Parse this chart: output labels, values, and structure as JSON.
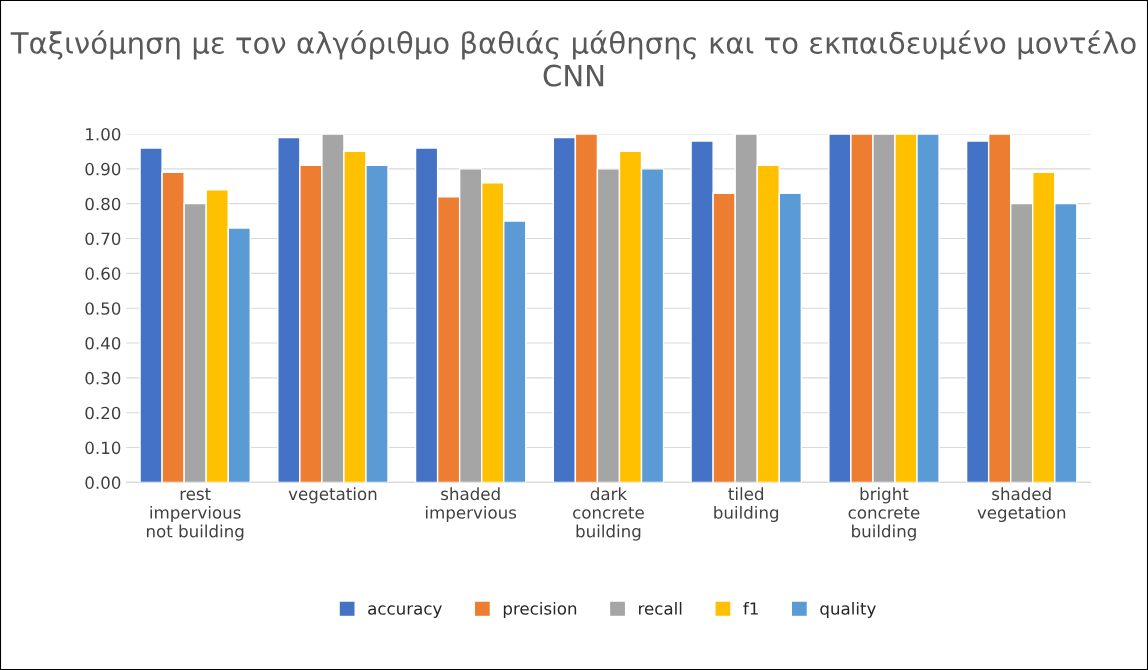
{
  "chart_data": {
    "type": "bar",
    "title": "Ταξινόμηση με τον αλγόριθμο βαθιάς μάθησης και το εκπαιδευμένο μοντέλο CNN",
    "categories": [
      "rest\nimpervious\nnot building",
      "vegetation",
      "shaded\nimpervious",
      "dark\nconcrete\nbuilding",
      "tiled\nbuilding",
      "bright\nconcrete\nbuilding",
      "shaded\nvegetation"
    ],
    "series": [
      {
        "name": "accuracy",
        "color": "#4472c4",
        "values": [
          0.96,
          0.99,
          0.96,
          0.99,
          0.98,
          1.0,
          0.98
        ]
      },
      {
        "name": "precision",
        "color": "#ed7d31",
        "values": [
          0.89,
          0.91,
          0.82,
          1.0,
          0.83,
          1.0,
          1.0
        ]
      },
      {
        "name": "recall",
        "color": "#a5a5a5",
        "values": [
          0.8,
          1.0,
          0.9,
          0.9,
          1.0,
          1.0,
          0.8
        ]
      },
      {
        "name": "f1",
        "color": "#ffc000",
        "values": [
          0.84,
          0.95,
          0.86,
          0.95,
          0.91,
          1.0,
          0.89
        ]
      },
      {
        "name": "quality",
        "color": "#5b9bd5",
        "values": [
          0.73,
          0.91,
          0.75,
          0.9,
          0.83,
          1.0,
          0.8
        ]
      }
    ],
    "ylim": [
      0,
      1.0
    ],
    "yticks": [
      {
        "value": 0,
        "label": "0.00"
      },
      {
        "value": 0.1,
        "label": "0.10"
      },
      {
        "value": 0.2,
        "label": "0.20"
      },
      {
        "value": 0.3,
        "label": "0.30"
      },
      {
        "value": 0.4,
        "label": "0.40"
      },
      {
        "value": 0.5,
        "label": "0.50"
      },
      {
        "value": 0.6,
        "label": "0.60"
      },
      {
        "value": 0.7,
        "label": "0.70"
      },
      {
        "value": 0.8,
        "label": "0.80"
      },
      {
        "value": 0.9,
        "label": "0.90"
      },
      {
        "value": 1.0,
        "label": "1.00"
      }
    ],
    "grid": "y",
    "legend": "bottom"
  }
}
